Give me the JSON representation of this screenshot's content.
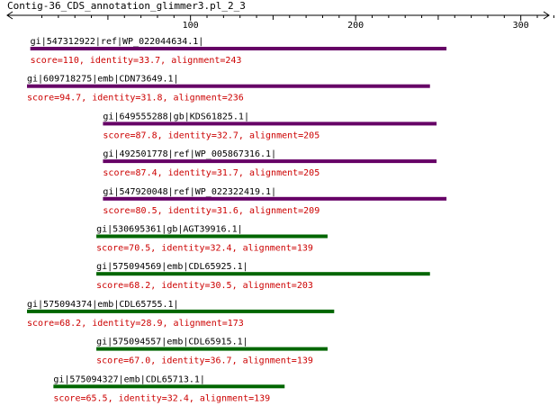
{
  "title": "Contig-36_CDS_annotation_glimmer3.pl_2_3",
  "axis": {
    "min": 1,
    "max": 335,
    "tick_labels": [
      "100",
      "200",
      "300"
    ]
  },
  "colors": {
    "text": "#000000",
    "score_text": "#cc0000",
    "purple": "#660066",
    "green": "#006600"
  },
  "hits": [
    {
      "id": "gi|547312922|ref|WP_022044634.1|",
      "score": "score=110, identity=33.7, alignment=243",
      "start": 3,
      "end": 255,
      "color": "#660066"
    },
    {
      "id": "gi|609718275|emb|CDN73649.1|",
      "score": "score=94.7, identity=31.8, alignment=236",
      "start": 1,
      "end": 245,
      "color": "#660066"
    },
    {
      "id": "gi|649555288|gb|KDS61825.1|",
      "score": "score=87.8, identity=32.7, alignment=205",
      "start": 47,
      "end": 249,
      "color": "#660066"
    },
    {
      "id": "gi|492501778|ref|WP_005867316.1|",
      "score": "score=87.4, identity=31.7, alignment=205",
      "start": 47,
      "end": 249,
      "color": "#660066"
    },
    {
      "id": "gi|547920048|ref|WP_022322419.1|",
      "score": "score=80.5, identity=31.6, alignment=209",
      "start": 47,
      "end": 255,
      "color": "#660066"
    },
    {
      "id": "gi|530695361|gb|AGT39916.1|",
      "score": "score=70.5, identity=32.4, alignment=139",
      "start": 43,
      "end": 183,
      "color": "#006600"
    },
    {
      "id": "gi|575094569|emb|CDL65925.1|",
      "score": "score=68.2, identity=30.5, alignment=203",
      "start": 43,
      "end": 245,
      "color": "#006600"
    },
    {
      "id": "gi|575094374|emb|CDL65755.1|",
      "score": "score=68.2, identity=28.9, alignment=173",
      "start": 1,
      "end": 187,
      "color": "#006600"
    },
    {
      "id": "gi|575094557|emb|CDL65915.1|",
      "score": "score=67.0, identity=36.7, alignment=139",
      "start": 43,
      "end": 183,
      "color": "#006600"
    },
    {
      "id": "gi|575094327|emb|CDL65713.1|",
      "score": "score=65.5, identity=32.4, alignment=139",
      "start": 17,
      "end": 157,
      "color": "#006600"
    }
  ]
}
